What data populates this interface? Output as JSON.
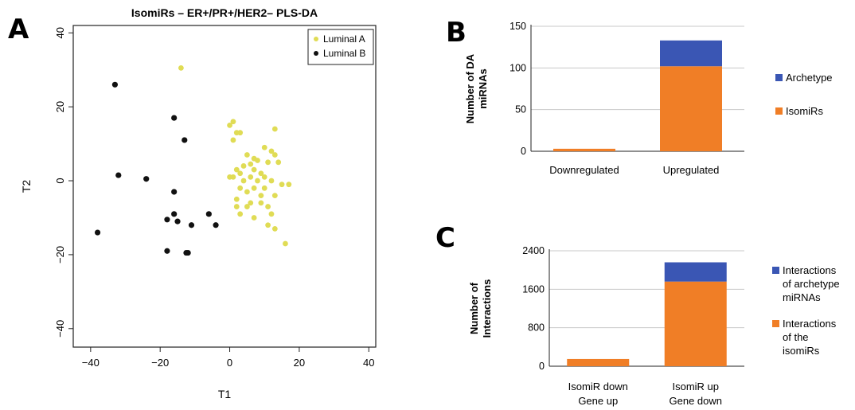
{
  "panels": {
    "a": "A",
    "b": "B",
    "c": "C"
  },
  "chart_data": [
    {
      "type": "scatter",
      "title": "IsomiRs – ER+/PR+/HER2– PLS-DA",
      "xlabel": "T1",
      "ylabel": "T2",
      "xlim": [
        -45,
        42
      ],
      "ylim": [
        -45,
        42
      ],
      "xticks": [
        "−40",
        "−20",
        "0",
        "20",
        "40"
      ],
      "yticks": [
        "−40",
        "−20",
        "0",
        "20",
        "40"
      ],
      "xtick_values": [
        -40,
        -20,
        0,
        20,
        40
      ],
      "ytick_values": [
        -40,
        -20,
        0,
        20,
        40
      ],
      "legend_position": "top-right",
      "series": [
        {
          "name": "Luminal A",
          "color": "#e0dc55",
          "points": [
            [
              -14,
              30.5
            ],
            [
              1,
              16
            ],
            [
              0,
              15
            ],
            [
              2,
              13
            ],
            [
              3,
              13
            ],
            [
              1,
              11
            ],
            [
              13,
              14
            ],
            [
              10,
              9
            ],
            [
              12,
              8
            ],
            [
              13,
              7
            ],
            [
              5,
              7
            ],
            [
              7,
              6
            ],
            [
              8,
              5.5
            ],
            [
              6,
              4.5
            ],
            [
              4,
              4
            ],
            [
              11,
              5
            ],
            [
              14,
              5
            ],
            [
              2,
              3
            ],
            [
              3,
              2
            ],
            [
              7,
              3
            ],
            [
              9,
              2
            ],
            [
              6,
              1
            ],
            [
              10,
              1
            ],
            [
              0,
              1
            ],
            [
              1,
              1
            ],
            [
              4,
              0
            ],
            [
              8,
              0
            ],
            [
              12,
              0
            ],
            [
              15,
              -1
            ],
            [
              17,
              -1
            ],
            [
              3,
              -2
            ],
            [
              7,
              -2
            ],
            [
              10,
              -2
            ],
            [
              5,
              -3
            ],
            [
              9,
              -4
            ],
            [
              13,
              -4
            ],
            [
              2,
              -5
            ],
            [
              6,
              -6
            ],
            [
              9,
              -6
            ],
            [
              2,
              -7
            ],
            [
              5,
              -7
            ],
            [
              11,
              -7
            ],
            [
              3,
              -9
            ],
            [
              7,
              -10
            ],
            [
              12,
              -9
            ],
            [
              11,
              -12
            ],
            [
              13,
              -13
            ],
            [
              16,
              -17
            ]
          ]
        },
        {
          "name": "Luminal B",
          "color": "#111111",
          "points": [
            [
              -33,
              26
            ],
            [
              -16,
              17
            ],
            [
              -13,
              11
            ],
            [
              -32,
              1.5
            ],
            [
              -24,
              0.5
            ],
            [
              -16,
              -3
            ],
            [
              -16,
              -9
            ],
            [
              -15,
              -11
            ],
            [
              -18,
              -10.5
            ],
            [
              -6,
              -9
            ],
            [
              -4,
              -12
            ],
            [
              -11,
              -12
            ],
            [
              -38,
              -14
            ],
            [
              -18,
              -19
            ],
            [
              -12,
              -19.5
            ],
            [
              -12.5,
              -19.5
            ]
          ]
        }
      ]
    },
    {
      "type": "bar",
      "stacked": true,
      "title": "",
      "ylabel": "Number of DA miRNAs",
      "ylabel_lines": [
        "Number of DA",
        "miRNAs"
      ],
      "ylim": [
        0,
        150
      ],
      "yticks": [
        "0",
        "50",
        "100",
        "150"
      ],
      "ytick_values": [
        0,
        50,
        100,
        150
      ],
      "grid": true,
      "categories": [
        "Downregulated",
        "Upregulated"
      ],
      "legend_position": "right",
      "series": [
        {
          "name": "IsomiRs",
          "color": "#f07e26",
          "values": [
            3,
            102
          ]
        },
        {
          "name": "Archetype",
          "color": "#3a56b4",
          "values": [
            0,
            31
          ]
        }
      ]
    },
    {
      "type": "bar",
      "stacked": true,
      "title": "",
      "ylabel": "Number of Interactions",
      "ylabel_lines": [
        "Number of",
        "Interactions"
      ],
      "ylim": [
        0,
        2400
      ],
      "yticks": [
        "0",
        "800",
        "1600",
        "2400"
      ],
      "ytick_values": [
        0,
        800,
        1600,
        2400
      ],
      "grid": true,
      "categories": [
        "IsomiR down Gene up",
        "IsomiR up Gene down"
      ],
      "category_lines": [
        [
          "IsomiR down",
          "Gene up"
        ],
        [
          "IsomiR up",
          "Gene down"
        ]
      ],
      "legend_position": "right",
      "series": [
        {
          "name": "Interactions of the isomiRs",
          "name_lines": [
            "Interactions",
            "of the",
            "isomiRs"
          ],
          "color": "#f07e26",
          "values": [
            150,
            1760
          ]
        },
        {
          "name": "Interactions of archetype miRNAs",
          "name_lines": [
            "Interactions",
            "of archetype",
            "miRNAs"
          ],
          "color": "#3a56b4",
          "values": [
            0,
            400
          ]
        }
      ]
    }
  ]
}
